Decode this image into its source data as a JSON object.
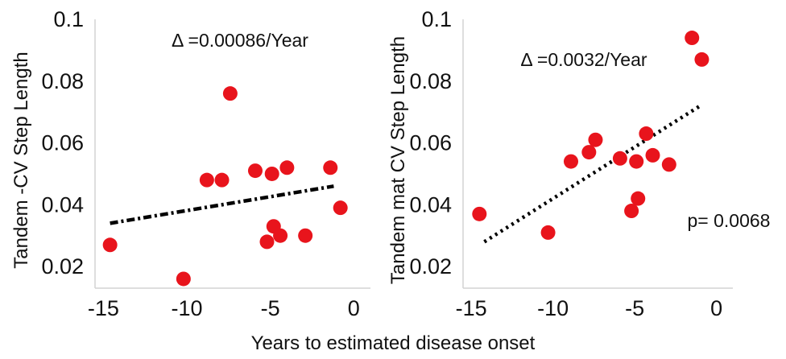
{
  "xlabel": "Years to estimated disease onset",
  "chart_data": [
    {
      "type": "scatter",
      "ylabel": "Tandem -CV Step Length",
      "annotation": "Δ =0.00086/Year",
      "xlim": [
        -15.5,
        1
      ],
      "ylim": [
        0.013,
        0.1
      ],
      "x_ticks": [
        -15,
        -10,
        -5,
        0
      ],
      "x_tick_labels": [
        "-15",
        "-10",
        "-5",
        "0"
      ],
      "y_ticks": [
        0.02,
        0.04,
        0.06,
        0.08,
        0.1
      ],
      "y_tick_labels": [
        "0.02",
        "0.04",
        "0.06",
        "0.08",
        "0.1"
      ],
      "point_color": "#e8141c",
      "points": [
        {
          "x": -14.6,
          "y": 0.027
        },
        {
          "x": -10.2,
          "y": 0.016
        },
        {
          "x": -8.8,
          "y": 0.048
        },
        {
          "x": -7.9,
          "y": 0.048
        },
        {
          "x": -7.4,
          "y": 0.076
        },
        {
          "x": -5.9,
          "y": 0.051
        },
        {
          "x": -5.2,
          "y": 0.028
        },
        {
          "x": -4.9,
          "y": 0.05
        },
        {
          "x": -4.8,
          "y": 0.033
        },
        {
          "x": -4.4,
          "y": 0.03
        },
        {
          "x": -4.0,
          "y": 0.052
        },
        {
          "x": -2.9,
          "y": 0.03
        },
        {
          "x": -1.4,
          "y": 0.052
        },
        {
          "x": -0.8,
          "y": 0.039
        }
      ],
      "trendline": {
        "style": "dash-dot",
        "x": [
          -14.6,
          -1.2
        ],
        "y": [
          0.034,
          0.046
        ]
      }
    },
    {
      "type": "scatter",
      "ylabel": "Tandem mat CV Step Length",
      "annotation": "Δ =0.0032/Year",
      "pvalue": "p= 0.0068",
      "xlim": [
        -15.5,
        1
      ],
      "ylim": [
        0.013,
        0.1
      ],
      "x_ticks": [
        -15,
        -10,
        -5,
        0
      ],
      "x_tick_labels": [
        "-15",
        "-10",
        "-5",
        "0"
      ],
      "y_ticks": [
        0.02,
        0.04,
        0.06,
        0.08,
        0.1
      ],
      "y_tick_labels": [
        "0.02",
        "0.04",
        "0.06",
        "0.08",
        "0.1"
      ],
      "point_color": "#e8141c",
      "points": [
        {
          "x": -14.5,
          "y": 0.037
        },
        {
          "x": -10.3,
          "y": 0.031
        },
        {
          "x": -8.9,
          "y": 0.054
        },
        {
          "x": -7.8,
          "y": 0.057
        },
        {
          "x": -7.4,
          "y": 0.061
        },
        {
          "x": -5.9,
          "y": 0.055
        },
        {
          "x": -5.2,
          "y": 0.038
        },
        {
          "x": -4.9,
          "y": 0.054
        },
        {
          "x": -4.8,
          "y": 0.042
        },
        {
          "x": -4.3,
          "y": 0.063
        },
        {
          "x": -3.9,
          "y": 0.056
        },
        {
          "x": -2.9,
          "y": 0.053
        },
        {
          "x": -1.5,
          "y": 0.094
        },
        {
          "x": -0.9,
          "y": 0.087
        }
      ],
      "trendline": {
        "style": "dotted",
        "x": [
          -14.2,
          -1.0
        ],
        "y": [
          0.028,
          0.072
        ]
      }
    }
  ]
}
